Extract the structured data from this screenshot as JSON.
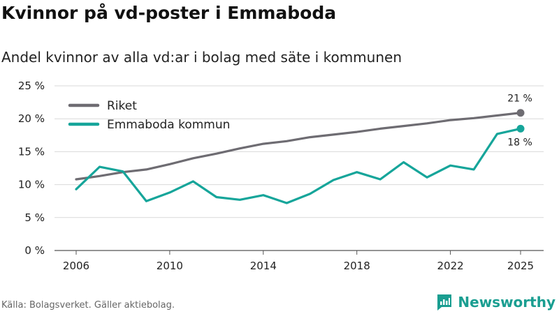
{
  "chart_data": {
    "type": "line",
    "title": "Kvinnor på vd-poster i Emmaboda",
    "subtitle": "Andel kvinnor av alla vd:ar i bolag med säte i kommunen",
    "ylim": [
      0,
      25
    ],
    "yticks": [
      0,
      5,
      10,
      15,
      20,
      25
    ],
    "ytick_labels": [
      "0 %",
      "5 %",
      "10 %",
      "15 %",
      "20 %",
      "25 %"
    ],
    "xlim": [
      2006,
      2025
    ],
    "xticks": [
      2006,
      2010,
      2014,
      2018,
      2022,
      2025
    ],
    "xtick_labels": [
      "2006",
      "2010",
      "2014",
      "2018",
      "2022",
      "2025"
    ],
    "x": [
      2006,
      2007,
      2008,
      2009,
      2010,
      2011,
      2012,
      2013,
      2014,
      2015,
      2016,
      2017,
      2018,
      2019,
      2020,
      2021,
      2022,
      2023,
      2024,
      2025
    ],
    "series": [
      {
        "name": "Riket",
        "color": "#6e6c72",
        "values": [
          10.8,
          11.3,
          11.9,
          12.3,
          13.1,
          14.0,
          14.7,
          15.5,
          16.2,
          16.6,
          17.2,
          17.6,
          18.0,
          18.5,
          18.9,
          19.3,
          19.8,
          20.1,
          20.5,
          20.9
        ],
        "end_label": "21 %"
      },
      {
        "name": "Emmaboda kommun",
        "color": "#16a59a",
        "values": [
          9.3,
          12.7,
          12.0,
          7.5,
          8.8,
          10.5,
          8.1,
          7.7,
          8.4,
          7.2,
          8.6,
          10.7,
          11.9,
          10.8,
          13.4,
          11.1,
          12.9,
          12.3,
          17.7,
          18.5
        ],
        "end_label": "18 %"
      }
    ],
    "legend_position": "top-left",
    "grid": true
  },
  "footer": {
    "source": "Källa: Bolagsverket. Gäller aktiebolag.",
    "brand": "Newsworthy"
  }
}
